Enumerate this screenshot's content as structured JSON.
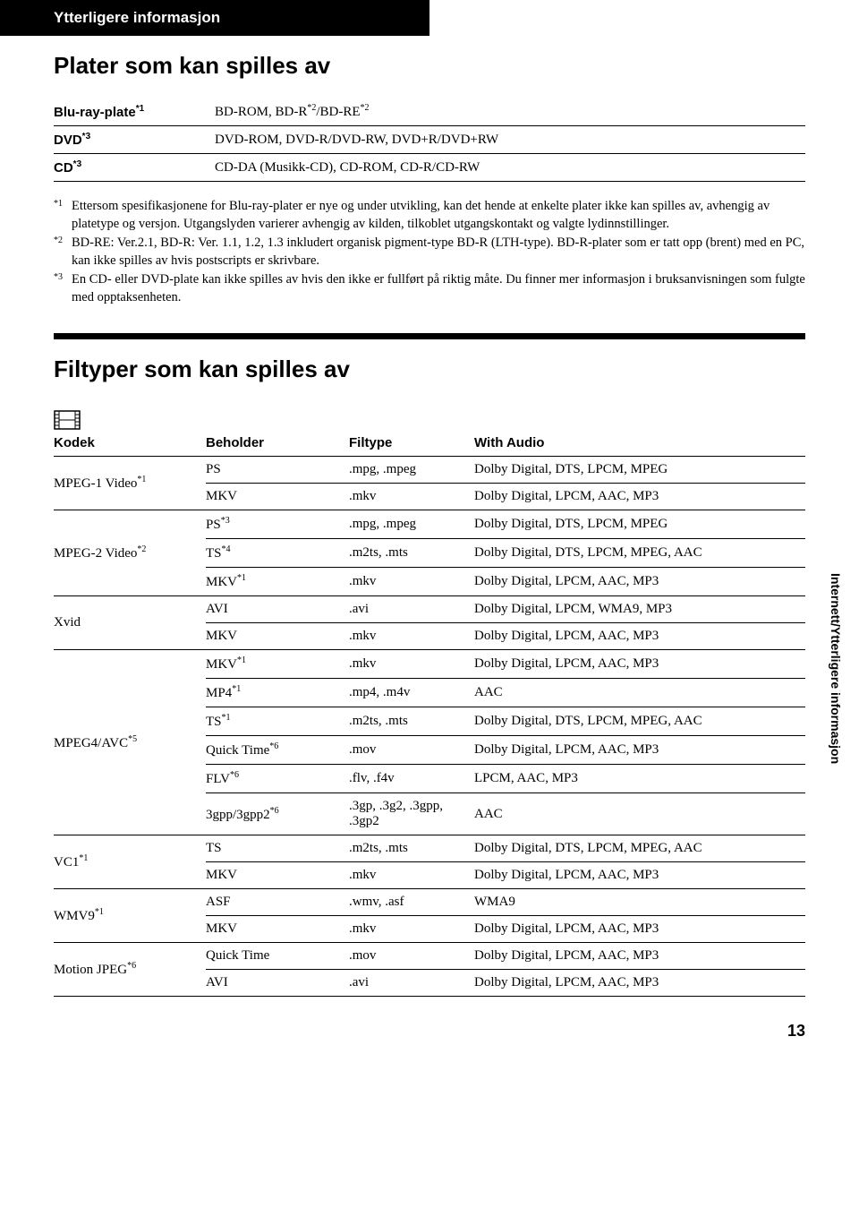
{
  "header": {
    "section": "Ytterligere informasjon"
  },
  "titles": {
    "discs": "Plater som kan spilles av",
    "filetypes": "Filtyper som kan spilles av"
  },
  "disc_table": {
    "rows": [
      {
        "k": "Blu-ray-plate",
        "ks": "*1",
        "v_pre": "BD-ROM, BD-R",
        "v_sup1": "*2",
        "v_mid": "/BD-RE",
        "v_sup2": "*2"
      },
      {
        "k": "DVD",
        "ks": "*3",
        "v": "DVD-ROM, DVD-R/DVD-RW, DVD+R/DVD+RW"
      },
      {
        "k": "CD",
        "ks": "*3",
        "v": "CD-DA (Musikk-CD), CD-ROM, CD-R/CD-RW"
      }
    ]
  },
  "footnotes": {
    "f1_marker": "*1",
    "f1": "Ettersom spesifikasjonene for Blu-ray-plater er nye og under utvikling, kan det hende at enkelte plater ikke kan spilles av, avhengig av platetype og versjon. Utgangslyden varierer avhengig av kilden, tilkoblet utgangskontakt og valgte lydinnstillinger.",
    "f2_marker": "*2",
    "f2": "BD-RE: Ver.2.1, BD-R: Ver. 1.1, 1.2, 1.3 inkludert organisk pigment-type BD-R (LTH-type). BD-R-plater som er tatt opp (brent) med en PC, kan ikke spilles av hvis postscripts er skrivbare.",
    "f3_marker": "*3",
    "f3": "En CD- eller DVD-plate kan ikke spilles av hvis den ikke er fullført på riktig måte. Du finner mer informasjon i bruksanvisningen som fulgte med opptaksenheten."
  },
  "codec": {
    "headers": {
      "codec": "Kodek",
      "container": "Beholder",
      "ext": "Filtype",
      "audio": "With Audio"
    },
    "groups": [
      {
        "name": "MPEG-1 Video",
        "sup": "*1",
        "rows": [
          {
            "c": "PS",
            "e": ".mpg, .mpeg",
            "a": "Dolby Digital, DTS, LPCM, MPEG"
          },
          {
            "c": "MKV",
            "e": ".mkv",
            "a": "Dolby Digital, LPCM, AAC, MP3"
          }
        ]
      },
      {
        "name": "MPEG-2 Video",
        "sup": "*2",
        "rows": [
          {
            "c": "PS",
            "csup": "*3",
            "e": ".mpg, .mpeg",
            "a": "Dolby Digital, DTS, LPCM, MPEG"
          },
          {
            "c": "TS",
            "csup": "*4",
            "e": ".m2ts, .mts",
            "a": "Dolby Digital, DTS, LPCM, MPEG, AAC"
          },
          {
            "c": "MKV",
            "csup": "*1",
            "e": ".mkv",
            "a": "Dolby Digital, LPCM, AAC, MP3"
          }
        ]
      },
      {
        "name": "Xvid",
        "sup": "",
        "rows": [
          {
            "c": "AVI",
            "e": ".avi",
            "a": "Dolby Digital, LPCM, WMA9, MP3"
          },
          {
            "c": "MKV",
            "e": ".mkv",
            "a": "Dolby Digital, LPCM, AAC, MP3"
          }
        ]
      },
      {
        "name": "MPEG4/AVC",
        "sup": "*5",
        "rows": [
          {
            "c": "MKV",
            "csup": "*1",
            "e": ".mkv",
            "a": "Dolby Digital, LPCM, AAC, MP3"
          },
          {
            "c": "MP4",
            "csup": "*1",
            "e": ".mp4, .m4v",
            "a": "AAC"
          },
          {
            "c": "TS",
            "csup": "*1",
            "e": ".m2ts, .mts",
            "a": "Dolby Digital, DTS, LPCM, MPEG, AAC"
          },
          {
            "c": "Quick Time",
            "csup": "*6",
            "e": ".mov",
            "a": "Dolby Digital, LPCM, AAC, MP3"
          },
          {
            "c": "FLV",
            "csup": "*6",
            "e": ".flv, .f4v",
            "a": "LPCM, AAC, MP3"
          },
          {
            "c": "3gpp/3gpp2",
            "csup": "*6",
            "e": ".3gp, .3g2, .3gpp, .3gp2",
            "a": "AAC"
          }
        ]
      },
      {
        "name": "VC1",
        "sup": "*1",
        "rows": [
          {
            "c": "TS",
            "e": ".m2ts, .mts",
            "a": "Dolby Digital, DTS, LPCM, MPEG, AAC"
          },
          {
            "c": "MKV",
            "e": ".mkv",
            "a": "Dolby Digital, LPCM, AAC, MP3"
          }
        ]
      },
      {
        "name": "WMV9",
        "sup": "*1",
        "rows": [
          {
            "c": "ASF",
            "e": ".wmv, .asf",
            "a": "WMA9"
          },
          {
            "c": "MKV",
            "e": ".mkv",
            "a": "Dolby Digital, LPCM, AAC, MP3"
          }
        ]
      },
      {
        "name": "Motion JPEG",
        "sup": "*6",
        "rows": [
          {
            "c": "Quick Time",
            "e": ".mov",
            "a": "Dolby Digital, LPCM, AAC, MP3"
          },
          {
            "c": "AVI",
            "e": ".avi",
            "a": "Dolby Digital, LPCM, AAC, MP3"
          }
        ]
      }
    ]
  },
  "side_label": "Internett/Ytterligere informasjon",
  "page_number": "13"
}
